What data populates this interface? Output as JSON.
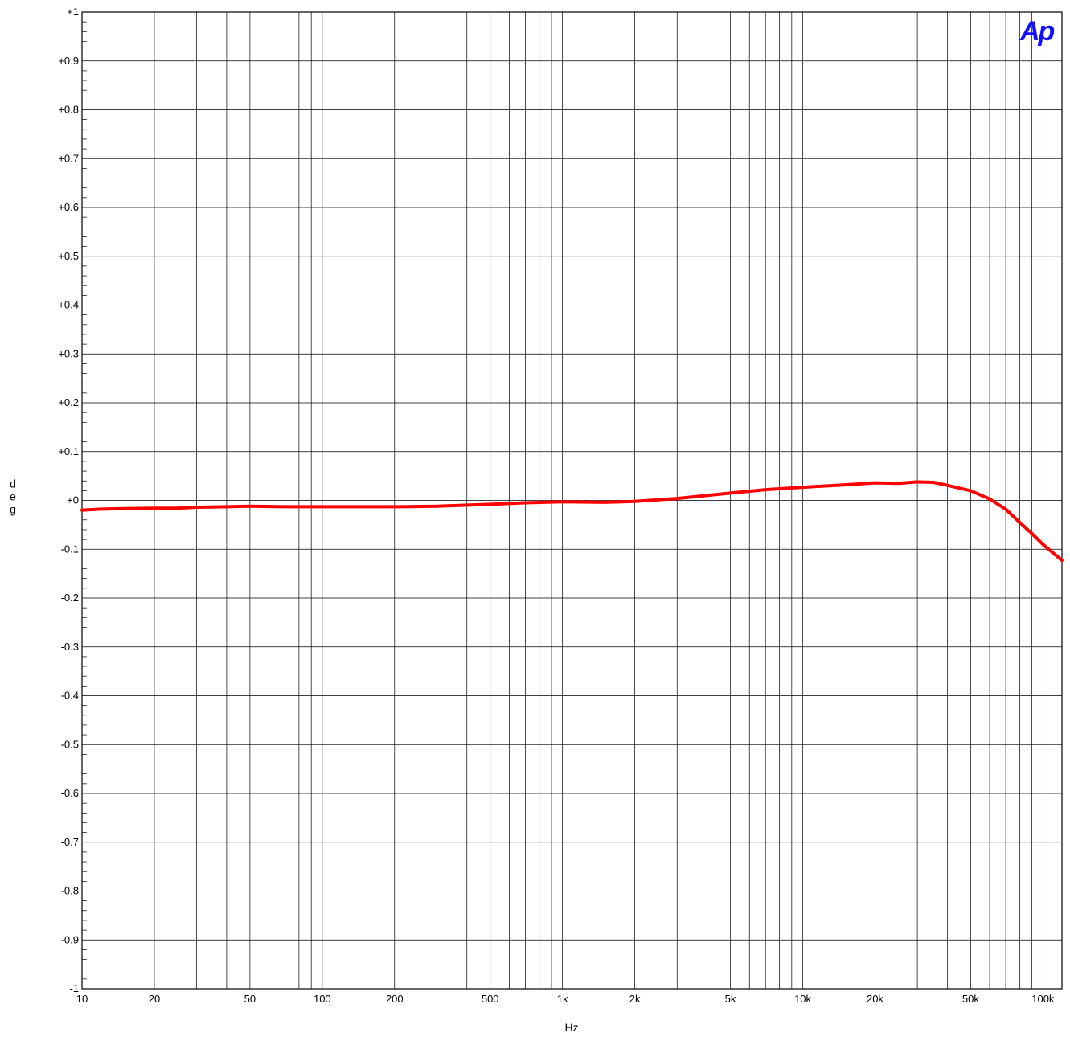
{
  "logo": {
    "text": "Ap",
    "color": "#1010ff"
  },
  "chart_data": {
    "type": "line",
    "title": "",
    "xlabel": "Hz",
    "ylabel": "deg",
    "xscale": "log",
    "xlim": [
      10,
      120000
    ],
    "ylim": [
      -1,
      1
    ],
    "grid": true,
    "x_tick_labels": [
      "10",
      "20",
      "50",
      "100",
      "200",
      "500",
      "1k",
      "2k",
      "5k",
      "10k",
      "20k",
      "50k",
      "100k"
    ],
    "x_tick_values": [
      10,
      20,
      50,
      100,
      200,
      500,
      1000,
      2000,
      5000,
      10000,
      20000,
      50000,
      100000
    ],
    "y_tick_labels": [
      "+1",
      "+0.9",
      "+0.8",
      "+0.7",
      "+0.6",
      "+0.5",
      "+0.4",
      "+0.3",
      "+0.2",
      "+0.1",
      "+0",
      "-0.1",
      "-0.2",
      "-0.3",
      "-0.4",
      "-0.5",
      "-0.6",
      "-0.7",
      "-0.8",
      "-0.9",
      "-1"
    ],
    "y_tick_values": [
      1,
      0.9,
      0.8,
      0.7,
      0.6,
      0.5,
      0.4,
      0.3,
      0.2,
      0.1,
      0,
      -0.1,
      -0.2,
      -0.3,
      -0.4,
      -0.5,
      -0.6,
      -0.7,
      -0.8,
      -0.9,
      -1
    ],
    "series": [
      {
        "color": "#ff0000",
        "x": [
          10,
          12,
          15,
          20,
          25,
          30,
          40,
          50,
          70,
          100,
          150,
          200,
          300,
          500,
          700,
          1000,
          1500,
          2000,
          3000,
          5000,
          7000,
          10000,
          15000,
          20000,
          25000,
          30000,
          35000,
          40000,
          50000,
          60000,
          70000,
          80000,
          90000,
          100000,
          120000
        ],
        "y": [
          -0.02,
          -0.018,
          -0.017,
          -0.016,
          -0.016,
          -0.014,
          -0.013,
          -0.012,
          -0.013,
          -0.013,
          -0.013,
          -0.013,
          -0.012,
          -0.008,
          -0.005,
          -0.003,
          -0.004,
          -0.002,
          0.004,
          0.015,
          0.022,
          0.027,
          0.032,
          0.036,
          0.035,
          0.038,
          0.037,
          0.031,
          0.02,
          0.003,
          -0.018,
          -0.045,
          -0.068,
          -0.09,
          -0.123
        ]
      }
    ]
  }
}
